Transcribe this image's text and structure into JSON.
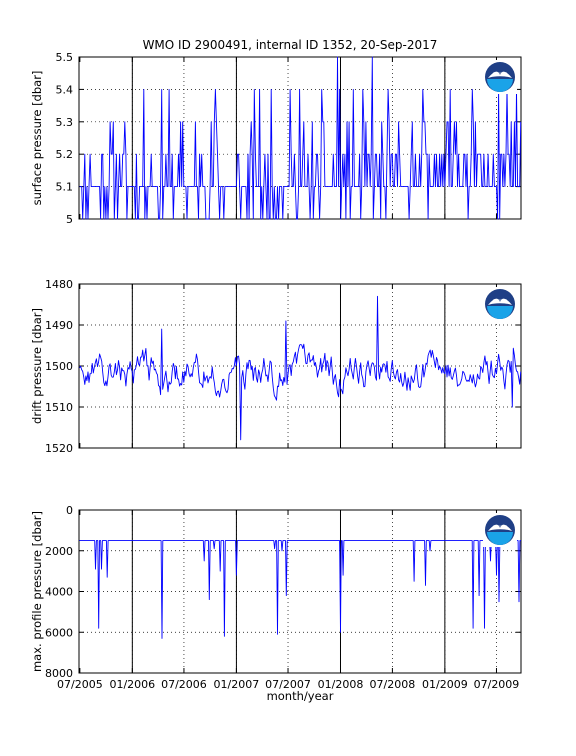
{
  "figure": {
    "title": "WMO ID 2900491, internal ID 1352, 20-Sep-2017",
    "xlabel": "month/year"
  },
  "colors": {
    "series": "#0000ff",
    "axes": "#000000",
    "grid": "#000000",
    "logo_outer": "#1f3f86",
    "logo_water": "#1aa3e8",
    "logo_bird": "#ffffff"
  },
  "icons": [
    "noaa-logo-icon"
  ],
  "x_axis": {
    "type": "date",
    "range": [
      "2005-06-28",
      "2009-09-25"
    ],
    "ticks": [
      {
        "date": "2005-07-01",
        "label": "07/2005"
      },
      {
        "date": "2006-01-01",
        "label": "01/2006"
      },
      {
        "date": "2006-07-01",
        "label": "07/2006"
      },
      {
        "date": "2007-01-01",
        "label": "01/2007"
      },
      {
        "date": "2007-07-01",
        "label": "07/2007"
      },
      {
        "date": "2008-01-01",
        "label": "01/2008"
      },
      {
        "date": "2008-07-01",
        "label": "07/2008"
      },
      {
        "date": "2009-01-01",
        "label": "01/2009"
      },
      {
        "date": "2009-07-01",
        "label": "07/2009"
      }
    ],
    "year_boundaries": [
      "2006-01-01",
      "2007-01-01",
      "2008-01-01",
      "2009-01-01"
    ]
  },
  "chart_data": [
    {
      "type": "line",
      "ylabel": "surface pressure [dbar]",
      "ylim": [
        5,
        5.5
      ],
      "reversed": false,
      "grid": true,
      "ytick_values": [
        5,
        5.1,
        5.2,
        5.3,
        5.4,
        5.5
      ],
      "ytick_labels": [
        "5",
        "5.1",
        "5.2",
        "5.3",
        "5.4",
        "5.5"
      ],
      "series": [
        {
          "kind": "random",
          "seed": 11,
          "base": 5.1,
          "mode": "quantized",
          "step": 0.1,
          "min": 5.0,
          "max": 5.5,
          "count": 420,
          "spikes": [
            {
              "date": "2006-10-20",
              "value": 5.4
            },
            {
              "date": "2007-08-10",
              "value": 5.4
            },
            {
              "date": "2007-12-20",
              "value": 5.5
            },
            {
              "date": "2008-04-20",
              "value": 5.5
            },
            {
              "date": "2008-10-15",
              "value": 5.4
            },
            {
              "date": "2009-09-10",
              "value": 5.4
            }
          ]
        }
      ]
    },
    {
      "type": "line",
      "ylabel": "drift pressure [dbar]",
      "ylim": [
        1480,
        1520
      ],
      "reversed": true,
      "grid": true,
      "ytick_values": [
        1480,
        1490,
        1500,
        1510,
        1520
      ],
      "ytick_labels": [
        "1480",
        "1490",
        "1500",
        "1510",
        "1520"
      ],
      "series": [
        {
          "kind": "random",
          "seed": 23,
          "base": 1502,
          "mode": "continuous",
          "amplitude": 6,
          "min": 1483,
          "max": 1518,
          "count": 420,
          "spikes": [
            {
              "date": "2006-04-15",
              "value": 1491
            },
            {
              "date": "2007-01-15",
              "value": 1518
            },
            {
              "date": "2007-06-25",
              "value": 1489
            },
            {
              "date": "2008-05-10",
              "value": 1483
            },
            {
              "date": "2009-08-25",
              "value": 1510
            }
          ]
        }
      ]
    },
    {
      "type": "line",
      "ylabel": "max. profile pressure [dbar]",
      "ylim": [
        0,
        8000
      ],
      "reversed": true,
      "grid": true,
      "ytick_values": [
        0,
        2000,
        4000,
        6000,
        8000
      ],
      "ytick_labels": [
        "0",
        "2000",
        "4000",
        "6000",
        "8000"
      ],
      "series": [
        {
          "kind": "baseline_dips",
          "baseline": 1500,
          "dips": [
            {
              "date": "2005-08-25",
              "value": 2900
            },
            {
              "date": "2005-09-05",
              "value": 5800
            },
            {
              "date": "2005-09-15",
              "value": 2900
            },
            {
              "date": "2005-10-05",
              "value": 3300
            },
            {
              "date": "2006-04-15",
              "value": 6300
            },
            {
              "date": "2006-09-10",
              "value": 2500
            },
            {
              "date": "2006-09-28",
              "value": 4400
            },
            {
              "date": "2006-10-15",
              "value": 1900
            },
            {
              "date": "2006-11-05",
              "value": 3000
            },
            {
              "date": "2006-11-20",
              "value": 6200
            },
            {
              "date": "2007-01-01",
              "value": 3200
            },
            {
              "date": "2007-05-15",
              "value": 1900
            },
            {
              "date": "2007-05-25",
              "value": 6100
            },
            {
              "date": "2007-06-10",
              "value": 2000
            },
            {
              "date": "2007-06-25",
              "value": 4200
            },
            {
              "date": "2008-01-01",
              "value": 6000
            },
            {
              "date": "2008-01-10",
              "value": 3200
            },
            {
              "date": "2008-09-15",
              "value": 3500
            },
            {
              "date": "2008-10-25",
              "value": 3700
            },
            {
              "date": "2008-11-10",
              "value": 2000
            },
            {
              "date": "2009-04-10",
              "value": 5800
            },
            {
              "date": "2009-05-01",
              "value": 4200
            },
            {
              "date": "2009-05-20",
              "value": 5800
            },
            {
              "date": "2009-06-10",
              "value": 2500
            },
            {
              "date": "2009-07-01",
              "value": 3200
            },
            {
              "date": "2009-07-10",
              "value": 4500
            },
            {
              "date": "2009-09-18",
              "value": 4500
            }
          ]
        }
      ]
    }
  ]
}
